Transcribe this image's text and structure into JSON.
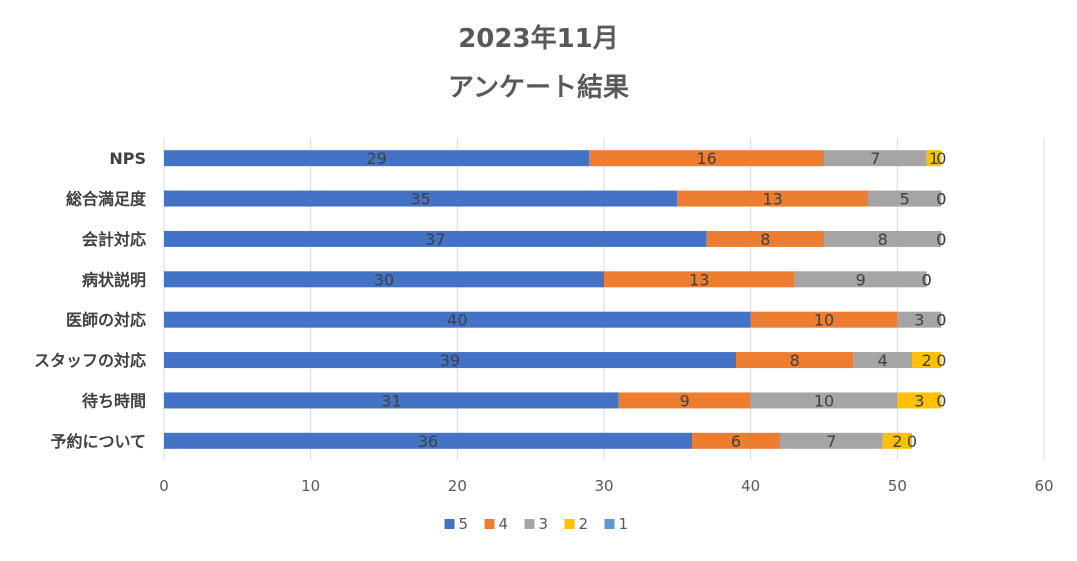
{
  "chart_data": {
    "type": "bar",
    "orientation": "horizontal",
    "stacked": true,
    "title": "2023年11月",
    "subtitle": "アンケート結果",
    "categories": [
      "NPS",
      "総合満足度",
      "会計対応",
      "病状説明",
      "医師の対応",
      "スタッフの対応",
      "待ち時間",
      "予約について"
    ],
    "series": [
      {
        "name": "5",
        "color": "#4472C4",
        "values": [
          29,
          35,
          37,
          30,
          40,
          39,
          31,
          36
        ]
      },
      {
        "name": "4",
        "color": "#ED7D31",
        "values": [
          16,
          13,
          8,
          13,
          10,
          8,
          9,
          6
        ]
      },
      {
        "name": "3",
        "color": "#A5A5A5",
        "values": [
          7,
          5,
          8,
          9,
          3,
          4,
          10,
          7
        ]
      },
      {
        "name": "2",
        "color": "#FFC000",
        "values": [
          1,
          0,
          0,
          0,
          0,
          2,
          3,
          2
        ]
      },
      {
        "name": "1",
        "color": "#5B9BD5",
        "values": [
          0,
          0,
          0,
          0,
          0,
          0,
          0,
          0
        ]
      }
    ],
    "xlim": [
      0,
      60
    ],
    "xticks": [
      "0",
      "10",
      "20",
      "30",
      "40",
      "50",
      "60"
    ],
    "grid": true,
    "legend_position": "bottom"
  }
}
